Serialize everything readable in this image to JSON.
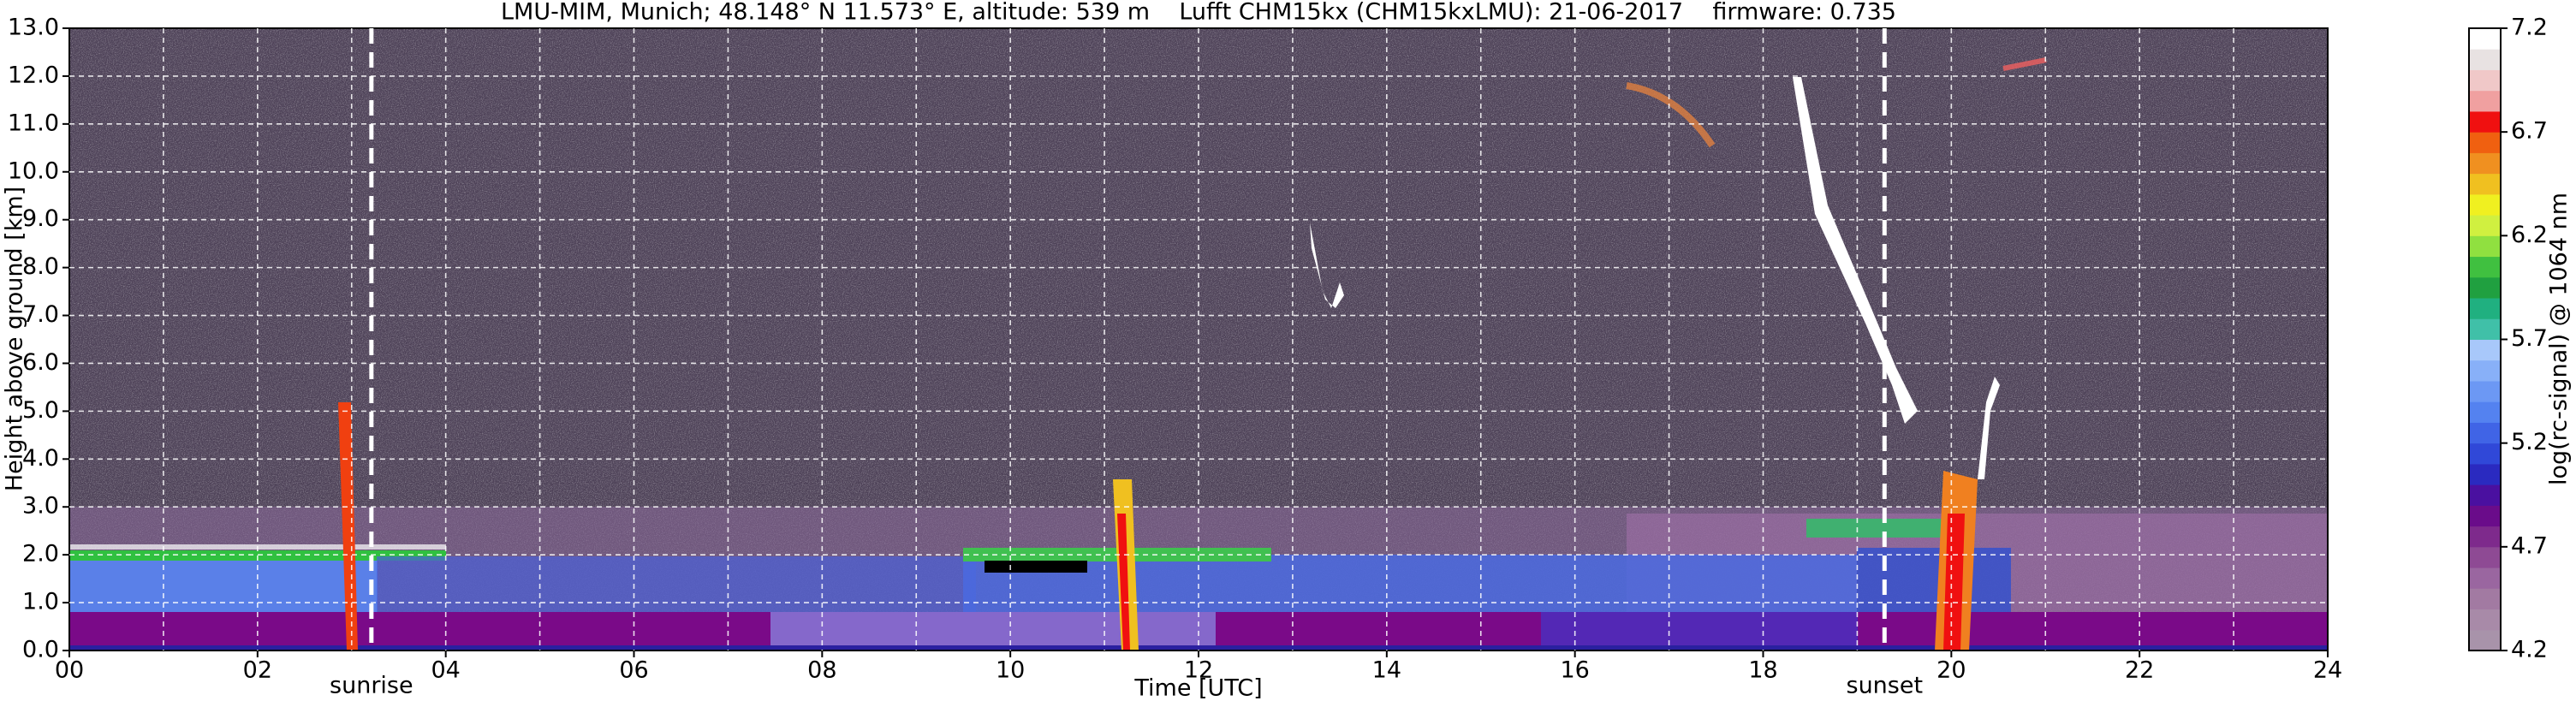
{
  "chart_data": {
    "type": "heatmap",
    "title": "LMU-MIM, Munich; 48.148° N 11.573° E, altitude: 539 m    Lufft CHM15kx (CHM15kxLMU): 21-06-2017    firmware: 0.735",
    "xlabel": "Time [UTC]",
    "ylabel": "Height above ground [km]",
    "xlim": [
      0,
      24
    ],
    "xticks": [
      {
        "value": 0,
        "label": "00"
      },
      {
        "value": 2,
        "label": "02"
      },
      {
        "value": 4,
        "label": "04"
      },
      {
        "value": 6,
        "label": "06"
      },
      {
        "value": 8,
        "label": "08"
      },
      10,
      12,
      14,
      16,
      18,
      20,
      22,
      24
    ],
    "x_minor_ticks": [
      1,
      3,
      5,
      7,
      9,
      11,
      13,
      15,
      17,
      19,
      21,
      23
    ],
    "ylim": [
      0,
      13
    ],
    "yticks": [
      {
        "value": 0,
        "label": "0.0"
      },
      {
        "value": 1,
        "label": "1.0"
      },
      {
        "value": 2,
        "label": "2.0"
      },
      {
        "value": 3,
        "label": "3.0"
      },
      {
        "value": 4,
        "label": "4.0"
      },
      {
        "value": 5,
        "label": "5.0"
      },
      {
        "value": 6,
        "label": "6.0"
      },
      {
        "value": 7,
        "label": "7.0"
      },
      {
        "value": 8,
        "label": "8.0"
      },
      {
        "value": 9,
        "label": "9.0"
      },
      {
        "value": 10,
        "label": "10.0"
      },
      {
        "value": 11,
        "label": "11.0"
      },
      {
        "value": 12,
        "label": "12.0"
      },
      {
        "value": 13,
        "label": "13.0"
      }
    ],
    "grid": true,
    "annotations": [
      {
        "label": "sunrise",
        "x": 3.21
      },
      {
        "label": "sunset",
        "x": 19.29
      }
    ],
    "colorbar": {
      "label": "log(rc-signal) @ 1064 nm",
      "lim": [
        4.2,
        7.2
      ],
      "ticks": [
        4.2,
        4.7,
        5.2,
        5.7,
        6.2,
        6.7,
        7.2
      ],
      "colors": [
        "#a893aa",
        "#a88aa8",
        "#a27aa2",
        "#9a66a0",
        "#8e4a94",
        "#7e2a8c",
        "#6a0c8a",
        "#4a10a0",
        "#2a2ac0",
        "#3048d8",
        "#4064e6",
        "#5482f0",
        "#6c98f4",
        "#88b0f8",
        "#a8c8fa",
        "#40c0a8",
        "#20b080",
        "#20a040",
        "#40c040",
        "#90e040",
        "#d0f040",
        "#f0f020",
        "#f0c020",
        "#f09020",
        "#f06010",
        "#f01010",
        "#f0a0a0",
        "#f0c8c8",
        "#e8e2e2",
        "#ffffff"
      ]
    }
  }
}
